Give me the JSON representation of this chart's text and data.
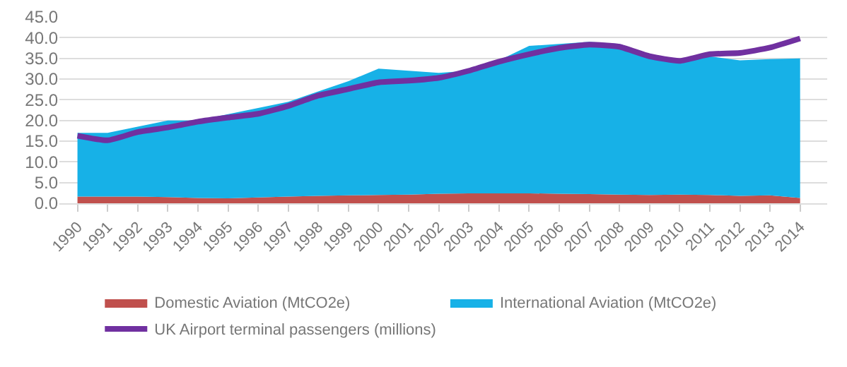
{
  "chart_data": {
    "type": "area",
    "stacked": true,
    "categories": [
      "1990",
      "1991",
      "1992",
      "1993",
      "1994",
      "1995",
      "1996",
      "1997",
      "1998",
      "1999",
      "2000",
      "2001",
      "2002",
      "2003",
      "2004",
      "2005",
      "2006",
      "2007",
      "2008",
      "2009",
      "2010",
      "2011",
      "2012",
      "2013",
      "2014"
    ],
    "series": [
      {
        "name": "Domestic Aviation (MtCO2e)",
        "color": "#c0504d",
        "values": [
          1.6,
          1.6,
          1.6,
          1.5,
          1.3,
          1.2,
          1.4,
          1.6,
          1.8,
          1.9,
          2.0,
          2.1,
          2.3,
          2.4,
          2.4,
          2.4,
          2.3,
          2.2,
          2.1,
          2.0,
          2.1,
          2.0,
          1.8,
          1.9,
          1.3
        ]
      },
      {
        "name": "International Aviation (MtCO2e)",
        "color": "#17b1e7",
        "values": [
          15.4,
          15.4,
          16.9,
          18.5,
          18.7,
          20.3,
          21.6,
          22.9,
          25.2,
          27.6,
          30.5,
          29.9,
          29.2,
          29.6,
          32.1,
          35.6,
          36.2,
          36.8,
          36.4,
          34.0,
          32.4,
          33.5,
          32.7,
          32.9,
          33.7
        ]
      },
      {
        "name": "UK Airport terminal passengers (millions)",
        "color": "#7030a0",
        "type": "line",
        "values": [
          16.3,
          15.2,
          17.2,
          18.3,
          19.7,
          20.7,
          21.6,
          23.5,
          26.0,
          27.6,
          29.2,
          29.6,
          30.3,
          32.0,
          34.2,
          36.0,
          37.5,
          38.3,
          37.8,
          35.5,
          34.4,
          36.0,
          36.3,
          37.6,
          39.8
        ]
      }
    ],
    "ylim": [
      0,
      45
    ],
    "yticks": [
      {
        "value": 0,
        "label": "0.0"
      },
      {
        "value": 5,
        "label": "5.0"
      },
      {
        "value": 10,
        "label": "10.0"
      },
      {
        "value": 15,
        "label": "15.0"
      },
      {
        "value": 20,
        "label": "20.0"
      },
      {
        "value": 25,
        "label": "25.0"
      },
      {
        "value": 30,
        "label": "30.0"
      },
      {
        "value": 35,
        "label": "35.0"
      },
      {
        "value": 40,
        "label": "40.0"
      },
      {
        "value": 45,
        "label": "45.0"
      }
    ],
    "grid": "y",
    "legend": "bottom",
    "marker": "none"
  }
}
